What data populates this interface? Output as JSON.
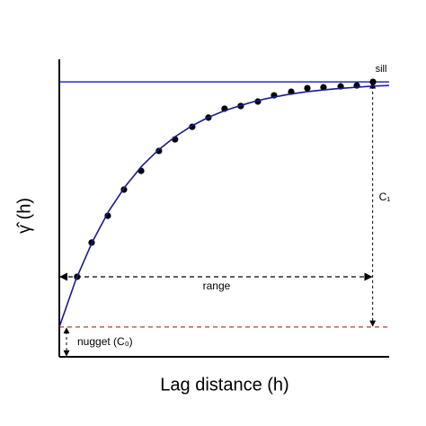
{
  "chart_data": {
    "type": "scatter",
    "x_label": "Lag distance (h)",
    "y_label": "γ̂ (h)",
    "xlim": [
      0,
      100
    ],
    "ylim": [
      0,
      100
    ],
    "series": [
      {
        "type": "scatter",
        "color": "#000000",
        "x": [
          5.4,
          9.8,
          14.7,
          19.6,
          24.8,
          30.2,
          35.1,
          40.3,
          45.2,
          50.1,
          55.0,
          60.2,
          65.1,
          70.3,
          75.2,
          80.1,
          85.3,
          90.2,
          95.1
        ],
        "values": [
          26.9,
          38.4,
          47.4,
          56.2,
          62.5,
          69.2,
          73.1,
          77.3,
          80.4,
          83.4,
          84.3,
          85.8,
          87.9,
          89.1,
          90.3,
          90.6,
          90.9,
          91.2,
          92.4
        ]
      },
      {
        "type": "line",
        "color": "#1a1a8c",
        "x": [
          0,
          5,
          10,
          15,
          20,
          25,
          30,
          35,
          40,
          45,
          50,
          55,
          60,
          65,
          70,
          75,
          80,
          85,
          90,
          95,
          100
        ],
        "values": [
          10,
          25.9,
          38.6,
          49.0,
          57.3,
          64.1,
          69.5,
          73.9,
          77.5,
          80.4,
          82.7,
          84.5,
          86.1,
          87.3,
          88.3,
          89.1,
          89.7,
          90.2,
          90.6,
          91.0,
          91.2
        ]
      }
    ],
    "sill": {
      "value": 92.4,
      "label": "sill",
      "color": "#2b2bb5"
    },
    "nugget": {
      "value": 10,
      "label": "nugget (C₀)",
      "color": "#c0392b"
    },
    "range": {
      "value": 95,
      "label": "range"
    },
    "c1_label": "C₁"
  }
}
